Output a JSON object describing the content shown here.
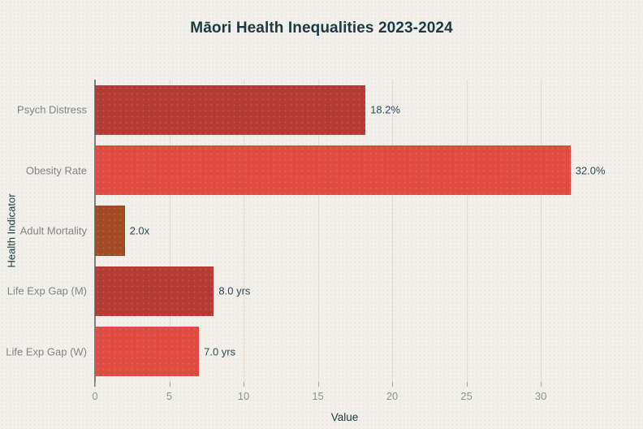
{
  "chart_data": {
    "type": "bar",
    "orientation": "horizontal",
    "title": "Māori Health Inequalities 2023-2024",
    "xlabel": "Value",
    "ylabel": "Health Indicator",
    "xlim": [
      0,
      33.6
    ],
    "xticks": [
      0,
      5,
      10,
      15,
      20,
      25,
      30
    ],
    "grid": true,
    "legend": false,
    "categories": [
      "Psych Distress",
      "Obesity Rate",
      "Adult Mortality",
      "Life Exp Gap (M)",
      "Life Exp Gap (W)"
    ],
    "values": [
      18.2,
      32.0,
      2.0,
      8.0,
      7.0
    ],
    "value_labels": [
      "18.2%",
      "32.0%",
      "2.0x",
      "8.0 yrs",
      "7.0 yrs"
    ],
    "bar_colors": [
      "#b43b34",
      "#e04b41",
      "#a34a24",
      "#b43b34",
      "#e04b41"
    ]
  },
  "colors": {
    "background": "#f1f0ea",
    "title_text": "#1c3a43",
    "annotation_text": "#2e4c57",
    "category_text": "#7f8787",
    "tick_text": "#92958f",
    "gridline": "#dedcd3",
    "axis_line": "#7f7f7b",
    "bar_dark_red": "#b43b34",
    "bar_bright_red": "#e04b41",
    "bar_sienna": "#a34a24"
  }
}
